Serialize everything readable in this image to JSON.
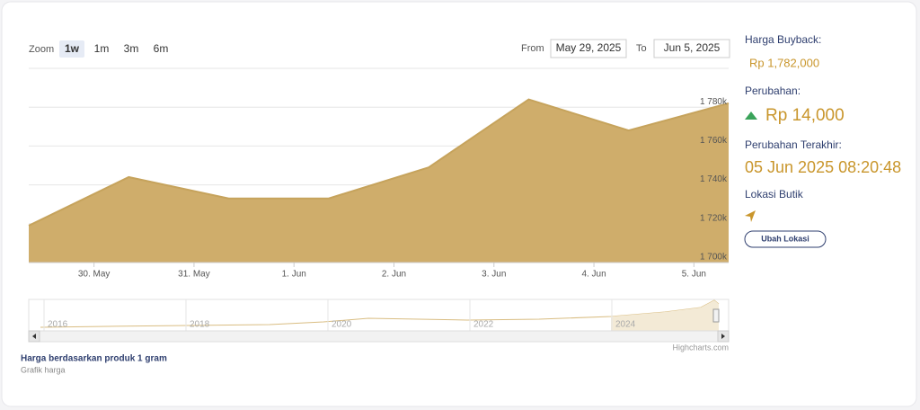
{
  "zoom": {
    "label": "Zoom",
    "buttons": [
      "1w",
      "1m",
      "3m",
      "6m"
    ],
    "selected": "1w"
  },
  "range": {
    "from_label": "From",
    "from": "May 29, 2025",
    "to_label": "To",
    "to": "Jun 5, 2025"
  },
  "chart_data": {
    "type": "area",
    "color": "#cfad6b",
    "line_color": "#c6a35c",
    "x": [
      "2025-05-29T08:20",
      "2025-05-30T08:20",
      "2025-05-31T08:20",
      "2025-06-01T08:20",
      "2025-06-02T08:20",
      "2025-06-03T08:20",
      "2025-06-04T08:20",
      "2025-06-05T08:20"
    ],
    "values": [
      1719000,
      1744000,
      1733000,
      1733000,
      1749000,
      1784000,
      1768000,
      1782000
    ],
    "xlim": [
      "2025-05-29T08:20",
      "2025-06-05T08:20"
    ],
    "xticks": [
      {
        "value": "2025-05-30",
        "label": "30. May"
      },
      {
        "value": "2025-05-31",
        "label": "31. May"
      },
      {
        "value": "2025-06-01",
        "label": "1. Jun"
      },
      {
        "value": "2025-06-02",
        "label": "2. Jun"
      },
      {
        "value": "2025-06-03",
        "label": "3. Jun"
      },
      {
        "value": "2025-06-04",
        "label": "4. Jun"
      },
      {
        "value": "2025-06-05",
        "label": "5. Jun"
      }
    ],
    "ylim": [
      1700000,
      1800000
    ],
    "yticks": [
      {
        "value": 1700000,
        "label": "1 700k"
      },
      {
        "value": 1720000,
        "label": "1 720k"
      },
      {
        "value": 1740000,
        "label": "1 740k"
      },
      {
        "value": 1760000,
        "label": "1 760k"
      },
      {
        "value": 1780000,
        "label": "1 780k"
      }
    ],
    "grid": true,
    "navigator_labels": [
      "2016",
      "2018",
      "2020",
      "2022",
      "2024"
    ],
    "credit": "Highcharts.com"
  },
  "footer": {
    "title": "Harga berdasarkan produk 1 gram",
    "subtitle": "Grafik harga"
  },
  "panel": {
    "buyback_label": "Harga Buyback:",
    "buyback_value": "Rp 1,782,000",
    "change_label": "Perubahan:",
    "change_value": "Rp 14,000",
    "last_change_label": "Perubahan Terakhir:",
    "last_change_value": "05 Jun 2025 08:20:48",
    "location_label": "Lokasi Butik",
    "button": "Ubah Lokasi"
  }
}
